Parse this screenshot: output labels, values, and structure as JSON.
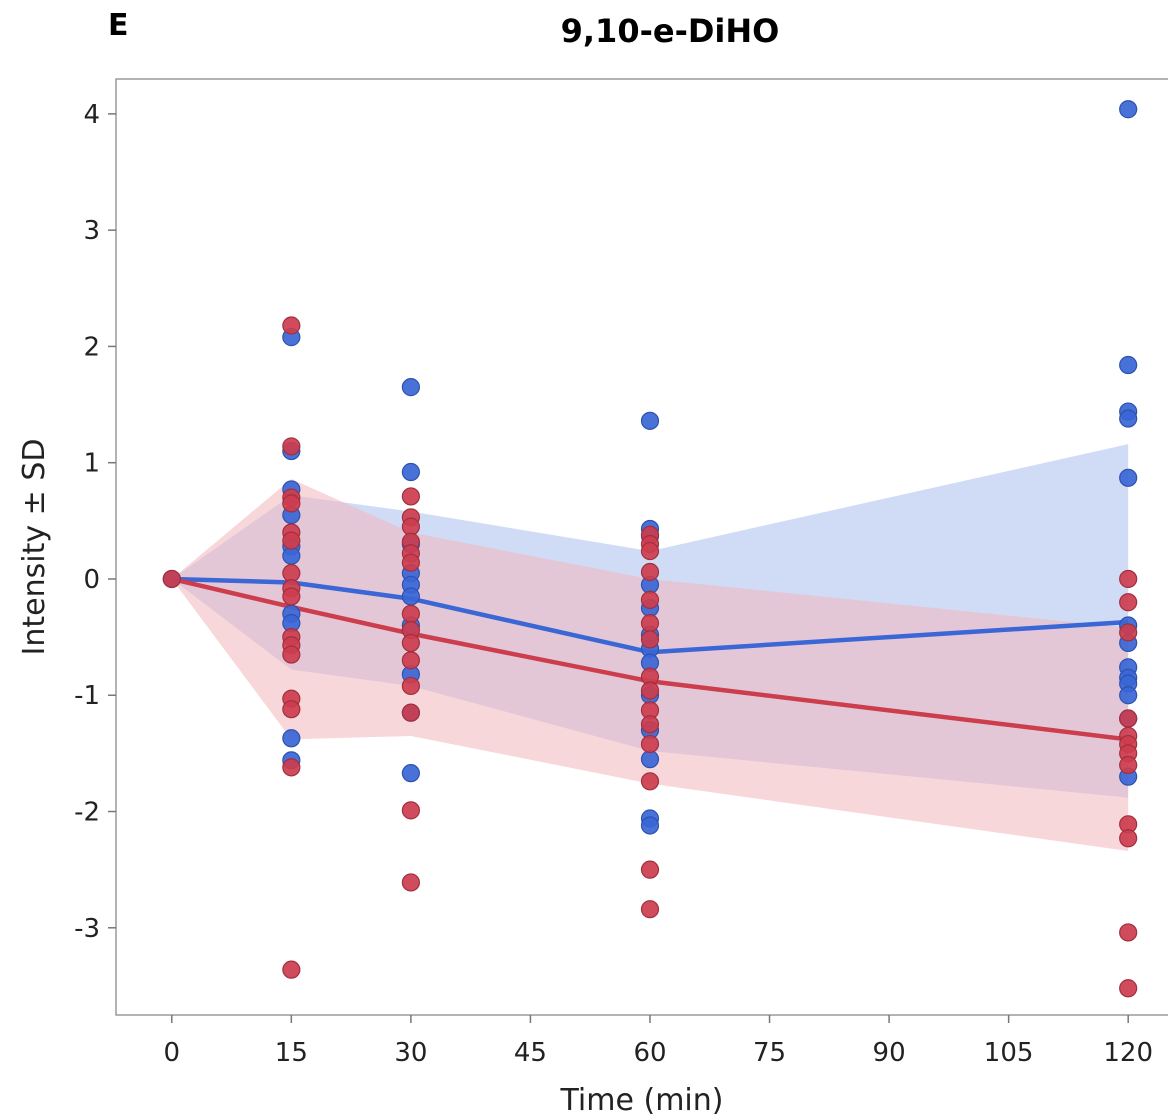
{
  "panel_letter": "E",
  "chart_data": {
    "type": "scatter",
    "title": "9,10-e-DiHO",
    "xlabel": "Time (min)",
    "ylabel": "Intensity ± SD",
    "xlim": [
      -7,
      126
    ],
    "ylim": [
      -3.75,
      4.3
    ],
    "x_ticks": [
      0,
      15,
      30,
      45,
      60,
      75,
      90,
      105,
      120
    ],
    "y_ticks": [
      -3,
      -2,
      -1,
      0,
      1,
      2,
      3,
      4
    ],
    "grid": false,
    "series": [
      {
        "color": "#3a66d6",
        "band_color": "#aabfee",
        "mean": [
          {
            "x": 0,
            "y": 0
          },
          {
            "x": 15,
            "y": -0.03
          },
          {
            "x": 30,
            "y": -0.17
          },
          {
            "x": 60,
            "y": -0.63
          },
          {
            "x": 120,
            "y": -0.37
          }
        ],
        "band": [
          {
            "x": 0,
            "lo": 0,
            "hi": 0
          },
          {
            "x": 15,
            "lo": -0.78,
            "hi": 0.72
          },
          {
            "x": 30,
            "lo": -0.92,
            "hi": 0.58
          },
          {
            "x": 60,
            "lo": -1.48,
            "hi": 0.24
          },
          {
            "x": 120,
            "lo": -1.88,
            "hi": 1.16
          }
        ],
        "points": [
          {
            "x": 0,
            "y": 0
          },
          {
            "x": 15,
            "y": 2.08
          },
          {
            "x": 15,
            "y": 1.1
          },
          {
            "x": 15,
            "y": 0.77
          },
          {
            "x": 15,
            "y": 0.55
          },
          {
            "x": 15,
            "y": 0.28
          },
          {
            "x": 15,
            "y": 0.2
          },
          {
            "x": 15,
            "y": -0.3
          },
          {
            "x": 15,
            "y": -0.38
          },
          {
            "x": 15,
            "y": -1.37
          },
          {
            "x": 15,
            "y": -1.56
          },
          {
            "x": 30,
            "y": 1.65
          },
          {
            "x": 30,
            "y": 0.92
          },
          {
            "x": 30,
            "y": 0.3
          },
          {
            "x": 30,
            "y": 0.05
          },
          {
            "x": 30,
            "y": -0.05
          },
          {
            "x": 30,
            "y": -0.15
          },
          {
            "x": 30,
            "y": -0.4
          },
          {
            "x": 30,
            "y": -0.82
          },
          {
            "x": 30,
            "y": -1.15
          },
          {
            "x": 30,
            "y": -1.67
          },
          {
            "x": 60,
            "y": 1.36
          },
          {
            "x": 60,
            "y": 0.43
          },
          {
            "x": 60,
            "y": 0.37
          },
          {
            "x": 60,
            "y": -0.05
          },
          {
            "x": 60,
            "y": -0.25
          },
          {
            "x": 60,
            "y": -0.48
          },
          {
            "x": 60,
            "y": -0.6
          },
          {
            "x": 60,
            "y": -0.72
          },
          {
            "x": 60,
            "y": -1.0
          },
          {
            "x": 60,
            "y": -1.3
          },
          {
            "x": 60,
            "y": -1.55
          },
          {
            "x": 60,
            "y": -2.06
          },
          {
            "x": 60,
            "y": -2.12
          },
          {
            "x": 120,
            "y": 4.04
          },
          {
            "x": 120,
            "y": 1.84
          },
          {
            "x": 120,
            "y": 1.44
          },
          {
            "x": 120,
            "y": 1.38
          },
          {
            "x": 120,
            "y": 0.87
          },
          {
            "x": 120,
            "y": -0.4
          },
          {
            "x": 120,
            "y": -0.55
          },
          {
            "x": 120,
            "y": -0.76
          },
          {
            "x": 120,
            "y": -0.85
          },
          {
            "x": 120,
            "y": -0.9
          },
          {
            "x": 120,
            "y": -1.0
          },
          {
            "x": 120,
            "y": -1.2
          },
          {
            "x": 120,
            "y": -1.7
          }
        ]
      },
      {
        "color": "#cc3d4e",
        "band_color": "#f2b6bd",
        "mean": [
          {
            "x": 0,
            "y": 0
          },
          {
            "x": 15,
            "y": -0.24
          },
          {
            "x": 30,
            "y": -0.47
          },
          {
            "x": 60,
            "y": -0.88
          },
          {
            "x": 120,
            "y": -1.38
          }
        ],
        "band": [
          {
            "x": 0,
            "lo": 0,
            "hi": 0
          },
          {
            "x": 15,
            "lo": -1.38,
            "hi": 0.86
          },
          {
            "x": 30,
            "lo": -1.35,
            "hi": 0.4
          },
          {
            "x": 60,
            "lo": -1.76,
            "hi": 0.0
          },
          {
            "x": 120,
            "lo": -2.34,
            "hi": -0.42
          }
        ],
        "points": [
          {
            "x": 0,
            "y": 0
          },
          {
            "x": 15,
            "y": 2.18
          },
          {
            "x": 15,
            "y": 1.14
          },
          {
            "x": 15,
            "y": 0.7
          },
          {
            "x": 15,
            "y": 0.65
          },
          {
            "x": 15,
            "y": 0.4
          },
          {
            "x": 15,
            "y": 0.33
          },
          {
            "x": 15,
            "y": 0.05
          },
          {
            "x": 15,
            "y": -0.08
          },
          {
            "x": 15,
            "y": -0.15
          },
          {
            "x": 15,
            "y": -0.5
          },
          {
            "x": 15,
            "y": -0.57
          },
          {
            "x": 15,
            "y": -0.65
          },
          {
            "x": 15,
            "y": -1.03
          },
          {
            "x": 15,
            "y": -1.12
          },
          {
            "x": 15,
            "y": -1.62
          },
          {
            "x": 15,
            "y": -3.36
          },
          {
            "x": 30,
            "y": 0.71
          },
          {
            "x": 30,
            "y": 0.53
          },
          {
            "x": 30,
            "y": 0.45
          },
          {
            "x": 30,
            "y": 0.32
          },
          {
            "x": 30,
            "y": 0.22
          },
          {
            "x": 30,
            "y": 0.14
          },
          {
            "x": 30,
            "y": -0.3
          },
          {
            "x": 30,
            "y": -0.44
          },
          {
            "x": 30,
            "y": -0.55
          },
          {
            "x": 30,
            "y": -0.7
          },
          {
            "x": 30,
            "y": -0.92
          },
          {
            "x": 30,
            "y": -1.15
          },
          {
            "x": 30,
            "y": -1.99
          },
          {
            "x": 30,
            "y": -2.61
          },
          {
            "x": 60,
            "y": 0.38
          },
          {
            "x": 60,
            "y": 0.3
          },
          {
            "x": 60,
            "y": 0.24
          },
          {
            "x": 60,
            "y": 0.06
          },
          {
            "x": 60,
            "y": -0.18
          },
          {
            "x": 60,
            "y": -0.38
          },
          {
            "x": 60,
            "y": -0.52
          },
          {
            "x": 60,
            "y": -0.84
          },
          {
            "x": 60,
            "y": -0.96
          },
          {
            "x": 60,
            "y": -1.13
          },
          {
            "x": 60,
            "y": -1.25
          },
          {
            "x": 60,
            "y": -1.42
          },
          {
            "x": 60,
            "y": -1.74
          },
          {
            "x": 60,
            "y": -2.5
          },
          {
            "x": 60,
            "y": -2.84
          },
          {
            "x": 120,
            "y": 0.0
          },
          {
            "x": 120,
            "y": -0.2
          },
          {
            "x": 120,
            "y": -0.46
          },
          {
            "x": 120,
            "y": -1.2
          },
          {
            "x": 120,
            "y": -1.35
          },
          {
            "x": 120,
            "y": -1.42
          },
          {
            "x": 120,
            "y": -1.5
          },
          {
            "x": 120,
            "y": -1.6
          },
          {
            "x": 120,
            "y": -2.11
          },
          {
            "x": 120,
            "y": -2.23
          },
          {
            "x": 120,
            "y": -3.04
          },
          {
            "x": 120,
            "y": -3.52
          }
        ]
      }
    ]
  }
}
